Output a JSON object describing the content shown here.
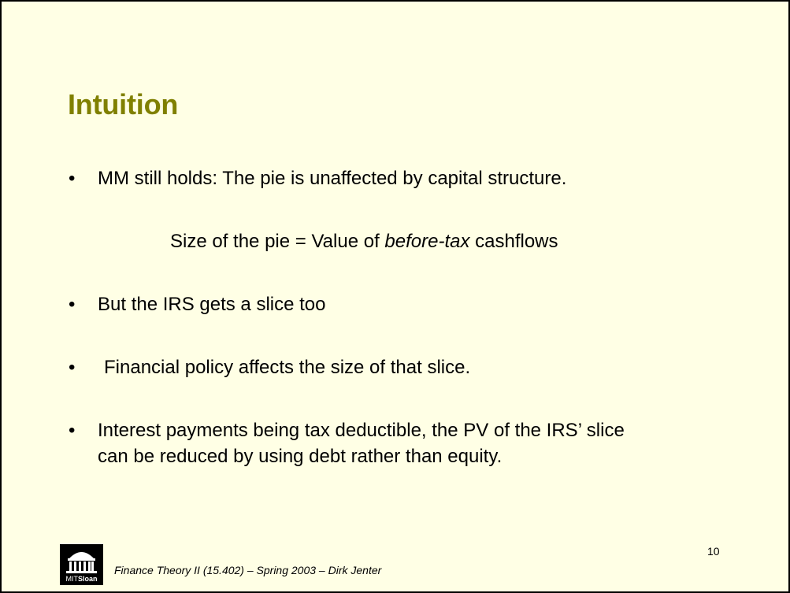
{
  "slide": {
    "title": "Intuition",
    "bullet_symbol": "•",
    "bullets": [
      {
        "text": "MM still holds: The pie is unaffected by capital structure."
      },
      {
        "text": "But the IRS gets a slice too"
      },
      {
        "text": "Financial policy affects the size of that slice."
      },
      {
        "lines": [
          "Interest payments being tax deductible, the PV of the IRS’ slice",
          "can be reduced by using debt rather than equity."
        ]
      }
    ],
    "equation": {
      "before": "Size of the pie = Value of ",
      "emphasis": "before-tax",
      "after": " cashflows"
    },
    "footer": "Finance Theory II (15.402) – Spring 2003 – Dirk Jenter",
    "page_number": "10",
    "logo": {
      "text_regular": "MIT",
      "text_bold": "Sloan"
    }
  },
  "colors": {
    "background": "#ffffe5",
    "title": "#808000",
    "border": "#000000"
  }
}
